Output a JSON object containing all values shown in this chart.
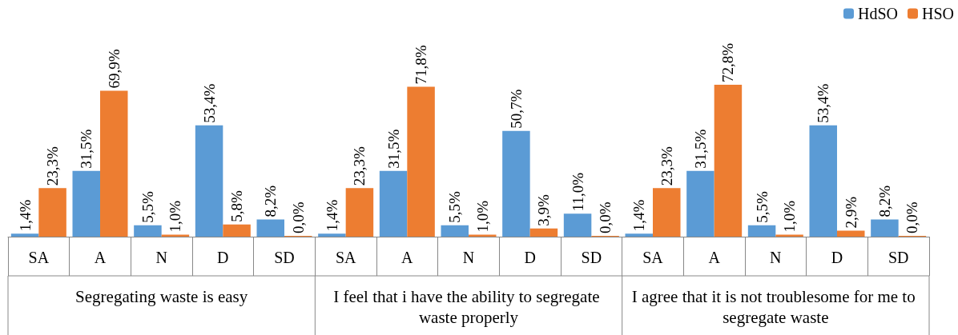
{
  "chart_data": {
    "type": "bar",
    "categories": [
      "SA",
      "A",
      "N",
      "D",
      "SD",
      "SA",
      "A",
      "N",
      "D",
      "SD",
      "SA",
      "A",
      "N",
      "D",
      "SD"
    ],
    "series": [
      {
        "name": "HdSO",
        "color": "#5b9bd5",
        "values": [
          1.4,
          31.5,
          5.5,
          53.4,
          8.2,
          1.4,
          31.5,
          5.5,
          50.7,
          11.0,
          1.4,
          31.5,
          5.5,
          53.4,
          8.2
        ],
        "value_labels": [
          "1,4%",
          "31,5%",
          "5,5%",
          "53,4%",
          "8,2%",
          "1,4%",
          "31,5%",
          "5,5%",
          "50,7%",
          "11,0%",
          "1,4%",
          "31,5%",
          "5,5%",
          "53,4%",
          "8,2%"
        ]
      },
      {
        "name": "HSO",
        "color": "#ed7d31",
        "values": [
          23.3,
          69.9,
          1.0,
          5.8,
          0.0,
          23.3,
          71.8,
          1.0,
          3.9,
          0.0,
          23.3,
          72.8,
          1.0,
          2.9,
          0.0
        ],
        "value_labels": [
          "23,3%",
          "69,9%",
          "1,0%",
          "5,8%",
          "0,0%",
          "23,3%",
          "71,8%",
          "1,0%",
          "3,9%",
          "0,0%",
          "23,3%",
          "72,8%",
          "1,0%",
          "2,9%",
          "0,0%"
        ]
      }
    ],
    "annotations": [
      "Segregating waste is easy",
      "I feel that i have the ability to segregate waste properly",
      "I agree that it is not troublesome for me to segregate waste"
    ],
    "legend": "top right",
    "grid": false
  }
}
